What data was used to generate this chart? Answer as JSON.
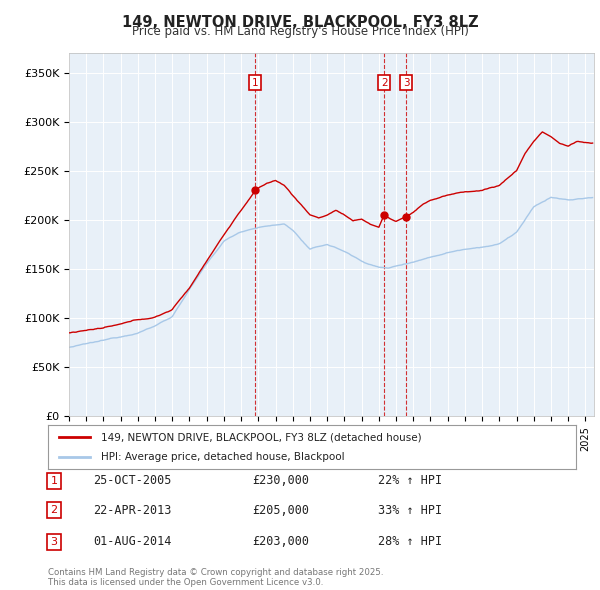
{
  "title": "149, NEWTON DRIVE, BLACKPOOL, FY3 8LZ",
  "subtitle": "Price paid vs. HM Land Registry's House Price Index (HPI)",
  "ylabel_ticks": [
    "£0",
    "£50K",
    "£100K",
    "£150K",
    "£200K",
    "£250K",
    "£300K",
    "£350K"
  ],
  "ytick_values": [
    0,
    50000,
    100000,
    150000,
    200000,
    250000,
    300000,
    350000
  ],
  "ylim": [
    0,
    370000
  ],
  "xlim_start": 1995.0,
  "xlim_end": 2025.5,
  "sale_color": "#cc0000",
  "hpi_color": "#a8c8e8",
  "plot_bg": "#e8f0f8",
  "legend_label_sale": "149, NEWTON DRIVE, BLACKPOOL, FY3 8LZ (detached house)",
  "legend_label_hpi": "HPI: Average price, detached house, Blackpool",
  "sales": [
    {
      "label": "1",
      "date_x": 2005.82,
      "price": 230000,
      "text": "25-OCT-2005",
      "price_str": "£230,000",
      "pct": "22% ↑ HPI"
    },
    {
      "label": "2",
      "date_x": 2013.32,
      "price": 205000,
      "text": "22-APR-2013",
      "price_str": "£205,000",
      "pct": "33% ↑ HPI"
    },
    {
      "label": "3",
      "date_x": 2014.58,
      "price": 203000,
      "text": "01-AUG-2014",
      "price_str": "£203,000",
      "pct": "28% ↑ HPI"
    }
  ],
  "footer": "Contains HM Land Registry data © Crown copyright and database right 2025.\nThis data is licensed under the Open Government Licence v3.0."
}
